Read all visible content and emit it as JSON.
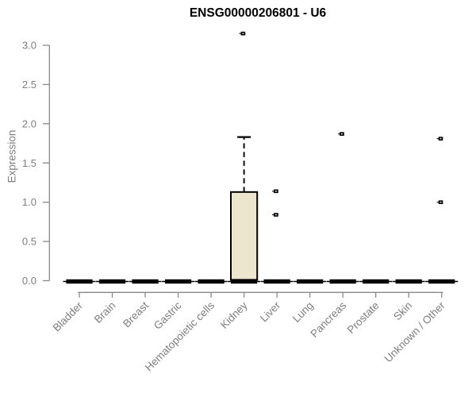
{
  "page": {
    "background": "#ffffff"
  },
  "chart_data": {
    "type": "boxplot",
    "title": "ENSG00000206801 - U6",
    "xlabel": "",
    "ylabel": "Expression",
    "ylim": [
      0,
      3.0
    ],
    "yticks": [
      0.0,
      0.5,
      1.0,
      1.5,
      2.0,
      2.5,
      3.0
    ],
    "ytick_labels": [
      "0.0",
      "0.5",
      "1.0",
      "1.5",
      "2.0",
      "2.5",
      "3.0"
    ],
    "grid": false,
    "legend": false,
    "categories": [
      "Bladder",
      "Brain",
      "Breast",
      "Gastric",
      "Hematopoietic cells",
      "Kidney",
      "Liver",
      "Lung",
      "Pancreas",
      "Prostate",
      "Skin",
      "Unknown / Other"
    ],
    "series": [
      {
        "category": "Bladder",
        "min": 0,
        "q1": 0,
        "median": 0,
        "q3": 0,
        "max": 0,
        "outliers": []
      },
      {
        "category": "Brain",
        "min": 0,
        "q1": 0,
        "median": 0,
        "q3": 0,
        "max": 0,
        "outliers": []
      },
      {
        "category": "Breast",
        "min": 0,
        "q1": 0,
        "median": 0,
        "q3": 0,
        "max": 0,
        "outliers": []
      },
      {
        "category": "Gastric",
        "min": 0,
        "q1": 0,
        "median": 0,
        "q3": 0,
        "max": 0,
        "outliers": []
      },
      {
        "category": "Hematopoietic cells",
        "min": 0,
        "q1": 0,
        "median": 0,
        "q3": 0,
        "max": 0,
        "outliers": []
      },
      {
        "category": "Kidney",
        "min": 0,
        "q1": 0,
        "median": 0,
        "q3": 1.13,
        "max": 1.83,
        "outliers": [
          3.15
        ]
      },
      {
        "category": "Liver",
        "min": 0,
        "q1": 0,
        "median": 0,
        "q3": 0,
        "max": 0,
        "outliers": [
          1.14,
          0.84
        ]
      },
      {
        "category": "Lung",
        "min": 0,
        "q1": 0,
        "median": 0,
        "q3": 0,
        "max": 0,
        "outliers": []
      },
      {
        "category": "Pancreas",
        "min": 0,
        "q1": 0,
        "median": 0,
        "q3": 0,
        "max": 0,
        "outliers": [
          1.87
        ]
      },
      {
        "category": "Prostate",
        "min": 0,
        "q1": 0,
        "median": 0,
        "q3": 0,
        "max": 0,
        "outliers": []
      },
      {
        "category": "Skin",
        "min": 0,
        "q1": 0,
        "median": 0,
        "q3": 0,
        "max": 0,
        "outliers": []
      },
      {
        "category": "Unknown / Other",
        "min": 0,
        "q1": 0,
        "median": 0,
        "q3": 0,
        "max": 0,
        "outliers": [
          1.81,
          1.0
        ]
      }
    ],
    "colors": {
      "box_fill": "#ebe6cd",
      "box_stroke": "#000000",
      "median": "#000000",
      "outlier": "#000000",
      "axis": "#898989",
      "tick_text": "#7e7e7e",
      "title": "#000000",
      "background": "#ffffff"
    }
  }
}
